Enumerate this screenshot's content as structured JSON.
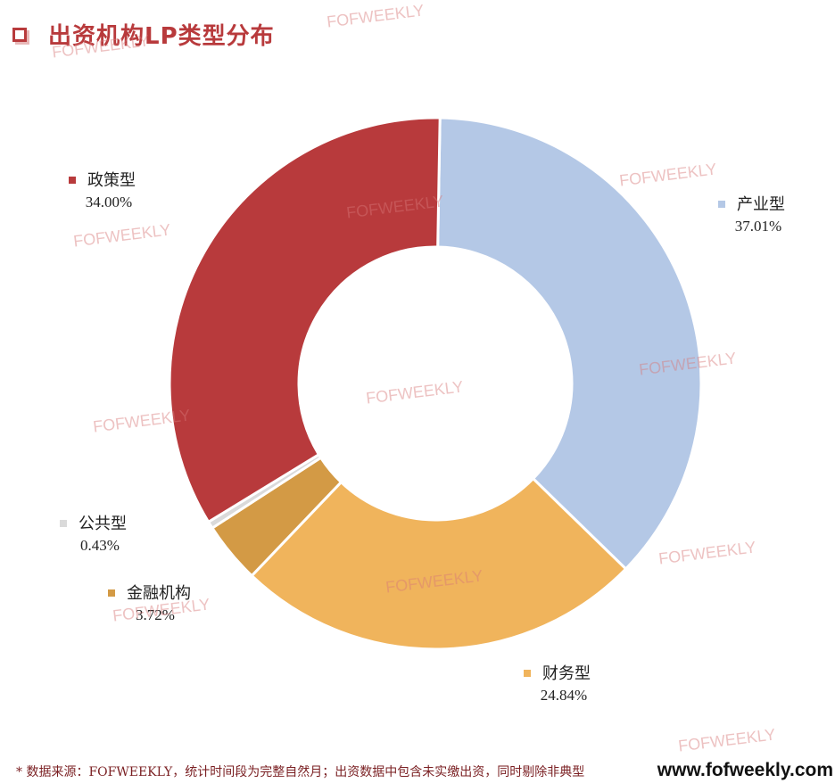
{
  "title": "出资机构LP类型分布",
  "chart_data": {
    "type": "pie",
    "title": "出资机构LP类型分布",
    "donut": true,
    "series": [
      {
        "name": "产业型",
        "value": 37.01,
        "label": "37.01%",
        "color": "#b4c8e6"
      },
      {
        "name": "财务型",
        "value": 24.84,
        "label": "24.84%",
        "color": "#f0b45c"
      },
      {
        "name": "金融机构",
        "value": 3.72,
        "label": "3.72%",
        "color": "#d39a45"
      },
      {
        "name": "公共型",
        "value": 0.43,
        "label": "0.43%",
        "color": "#dadada"
      },
      {
        "name": "政策型",
        "value": 34.0,
        "label": "34.00%",
        "color": "#b83a3c"
      }
    ]
  },
  "watermark": "FOFWEEKLY",
  "footnote": "* 数据来源：FOFWEEKLY，统计时间段为完整自然月；出资数据中包含未实缴出资，同时剔除非典型",
  "site": "www.fofweekly.com"
}
